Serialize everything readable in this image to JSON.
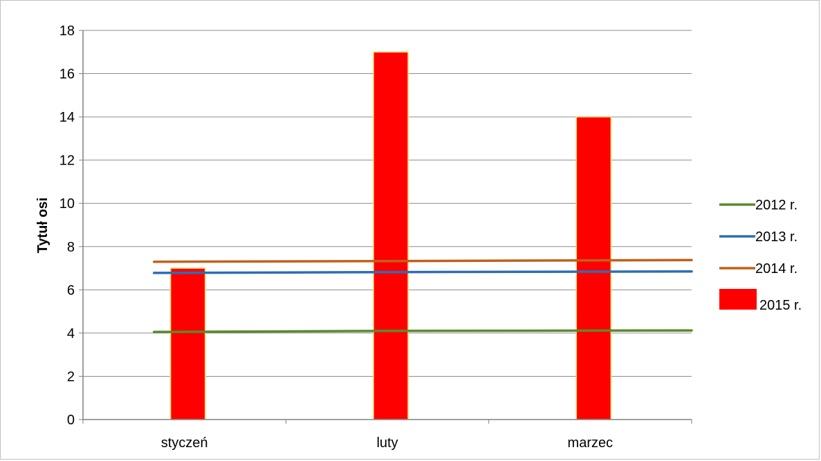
{
  "chart_data": {
    "type": "bar",
    "categories": [
      "styczeń",
      "luty",
      "marzec"
    ],
    "ylabel": "Tytuł osi",
    "xlabel": "",
    "ylim": [
      0,
      18
    ],
    "yticks": [
      0,
      2,
      4,
      6,
      8,
      10,
      12,
      14,
      16,
      18
    ],
    "grid": true,
    "legend_position": "right",
    "series": [
      {
        "name": "2012 r.",
        "type": "line",
        "color": "#5a8a2e",
        "values": [
          4.05,
          4.1,
          4.12
        ]
      },
      {
        "name": "2013 r.",
        "type": "line",
        "color": "#2e6db4",
        "values": [
          6.78,
          6.82,
          6.85
        ]
      },
      {
        "name": "2014 r.",
        "type": "line",
        "color": "#c0611b",
        "values": [
          7.3,
          7.33,
          7.38
        ]
      },
      {
        "name": "2015 r.",
        "type": "bar",
        "color": "#ff0000",
        "edge_color": "#ffd966",
        "values": [
          7,
          17,
          14
        ]
      }
    ]
  }
}
